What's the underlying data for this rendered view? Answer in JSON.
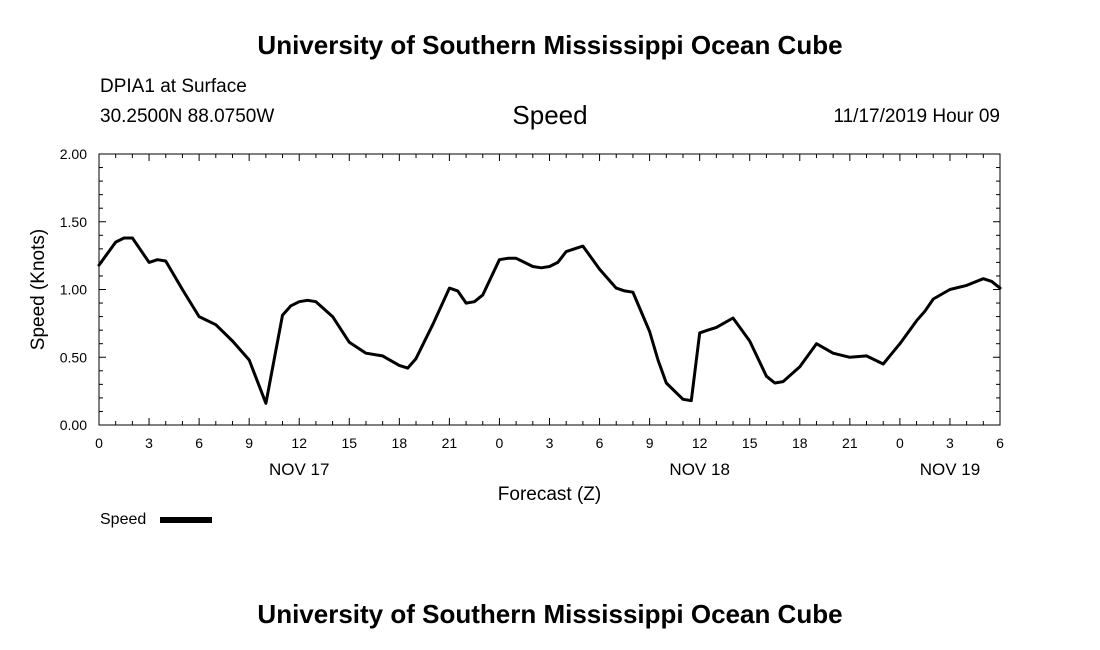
{
  "header": {
    "title": "University of Southern Mississippi Ocean Cube",
    "station": "DPIA1 at Surface",
    "coords": "30.2500N 88.0750W",
    "parameter": "Speed",
    "datetime": "11/17/2019 Hour 09"
  },
  "footer": {
    "title": "University of Southern Mississippi Ocean Cube"
  },
  "chart_data": {
    "type": "line",
    "title": "Speed",
    "xlabel": "Forecast (Z)",
    "ylabel": "Speed (Knots)",
    "xlim": [
      0,
      54
    ],
    "ylim": [
      0,
      2
    ],
    "x_tick_values": [
      0,
      3,
      6,
      9,
      12,
      15,
      18,
      21,
      24,
      27,
      30,
      33,
      36,
      39,
      42,
      45,
      48,
      51,
      54
    ],
    "x_tick_labels": [
      "0",
      "3",
      "6",
      "9",
      "12",
      "15",
      "18",
      "21",
      "0",
      "3",
      "6",
      "9",
      "12",
      "15",
      "18",
      "21",
      "0",
      "3",
      "6"
    ],
    "y_ticks": [
      0,
      0.5,
      1.0,
      1.5,
      2.0
    ],
    "y_tick_labels": [
      "0.00",
      "0.50",
      "1.00",
      "1.50",
      "2.00"
    ],
    "date_labels": [
      {
        "x": 12,
        "label": "NOV 17"
      },
      {
        "x": 36,
        "label": "NOV 18"
      },
      {
        "x": 51,
        "label": "NOV 19"
      }
    ],
    "grid": false,
    "legend": {
      "label": "Speed",
      "placement": "bottom-left"
    },
    "series": [
      {
        "name": "Speed",
        "color": "#000000",
        "x": [
          0,
          1,
          1.5,
          2,
          3,
          3.5,
          4,
          5,
          6,
          7,
          8,
          9,
          10,
          11,
          11.5,
          12,
          12.5,
          13,
          14,
          15,
          16,
          17,
          18,
          18.5,
          19,
          20,
          21,
          21.5,
          22,
          22.5,
          23,
          24,
          24.5,
          25,
          25.5,
          26,
          26.5,
          27,
          27.5,
          28,
          29,
          30,
          31,
          31.5,
          32,
          33,
          33.5,
          34,
          35,
          35.5,
          36,
          36.5,
          37,
          38,
          39,
          40,
          40.5,
          41,
          42,
          43,
          44,
          45,
          46,
          47,
          48,
          49,
          49.5,
          50,
          51,
          52,
          53,
          53.5,
          54
        ],
        "y": [
          1.18,
          1.35,
          1.38,
          1.38,
          1.2,
          1.22,
          1.21,
          1.0,
          0.8,
          0.74,
          0.62,
          0.48,
          0.16,
          0.81,
          0.88,
          0.91,
          0.92,
          0.91,
          0.8,
          0.61,
          0.53,
          0.51,
          0.44,
          0.42,
          0.49,
          0.74,
          1.01,
          0.99,
          0.9,
          0.91,
          0.96,
          1.22,
          1.23,
          1.23,
          1.2,
          1.17,
          1.16,
          1.17,
          1.2,
          1.28,
          1.32,
          1.15,
          1.01,
          0.99,
          0.98,
          0.69,
          0.48,
          0.31,
          0.19,
          0.18,
          0.68,
          0.7,
          0.72,
          0.79,
          0.62,
          0.36,
          0.31,
          0.32,
          0.43,
          0.6,
          0.53,
          0.5,
          0.51,
          0.45,
          0.6,
          0.77,
          0.84,
          0.93,
          1.0,
          1.03,
          1.08,
          1.06,
          1.01
        ]
      }
    ]
  }
}
